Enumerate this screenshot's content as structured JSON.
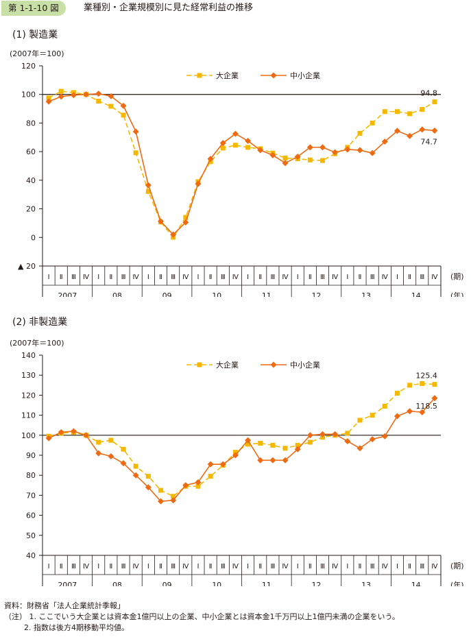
{
  "header": {
    "figure_label": "第 1-1-10 図",
    "title": "業種別・企業規模別に見た経常利益の推移"
  },
  "quarters": [
    "Ⅰ",
    "Ⅱ",
    "Ⅲ",
    "Ⅳ"
  ],
  "years": [
    "2007",
    "08",
    "09",
    "10",
    "11",
    "12",
    "13",
    "14"
  ],
  "period_label": "(期)",
  "year_label": "(年)",
  "chart_data": [
    {
      "type": "line",
      "panel_title": "(1) 製造業",
      "unit": "(2007年＝100)",
      "ylim": [
        -20,
        120
      ],
      "yticks": [
        -20,
        0,
        20,
        40,
        60,
        80,
        100,
        120
      ],
      "ytick_labels": [
        "▲ 20",
        "0",
        "20",
        "40",
        "60",
        "80",
        "100",
        "120"
      ],
      "reference_line": 100,
      "legend_position": "top-center",
      "series": [
        {
          "name": "大企業",
          "color": "#f5b800",
          "style": "dashed",
          "marker": "square",
          "values": [
            97.5,
            102.2,
            101.3,
            100,
            95.3,
            91.7,
            85.5,
            59.2,
            32.1,
            10.8,
            0.1,
            14,
            39,
            53,
            62.5,
            64.5,
            63,
            62,
            59,
            55.5,
            55,
            54.2,
            53.8,
            58.5,
            63,
            72.8,
            80,
            88,
            88,
            86.5,
            89.5,
            94.8
          ],
          "end_label": "94.8"
        },
        {
          "name": "中小企業",
          "color": "#ee6a13",
          "style": "solid",
          "marker": "diamond",
          "values": [
            95,
            98.5,
            99.5,
            100,
            100.5,
            98.8,
            92,
            74,
            36.5,
            11.2,
            2,
            10.5,
            37.5,
            55,
            66,
            72.5,
            67.5,
            61,
            57.5,
            52,
            56.5,
            63,
            63,
            59.5,
            61.5,
            61,
            59,
            67,
            74.5,
            71,
            75.5,
            74.7
          ],
          "end_label": "74.7"
        }
      ]
    },
    {
      "type": "line",
      "panel_title": "(2) 非製造業",
      "unit": "(2007年＝100)",
      "ylim": [
        40,
        140
      ],
      "yticks": [
        40,
        50,
        60,
        70,
        80,
        90,
        100,
        110,
        120,
        130,
        140
      ],
      "ytick_labels": [
        "40",
        "50",
        "60",
        "70",
        "80",
        "90",
        "100",
        "110",
        "120",
        "130",
        "140"
      ],
      "reference_line": 100,
      "legend_position": "top-center",
      "series": [
        {
          "name": "大企業",
          "color": "#f5b800",
          "style": "dashed",
          "marker": "square",
          "values": [
            99.5,
            101,
            101.5,
            100,
            96.5,
            97.5,
            93,
            84.5,
            79.5,
            72.5,
            69.5,
            74.5,
            74.5,
            79.5,
            85,
            91.5,
            95.5,
            96,
            95,
            93.5,
            95,
            96.5,
            99,
            100,
            101,
            107.5,
            110,
            114.5,
            121,
            125,
            125.8,
            125.4
          ],
          "end_label": "125.4"
        },
        {
          "name": "中小企業",
          "color": "#ee6a13",
          "style": "solid",
          "marker": "diamond",
          "values": [
            98.5,
            101.5,
            102,
            100,
            91,
            89.5,
            86,
            80,
            74,
            67,
            67.5,
            75,
            76.5,
            85.5,
            85.5,
            90,
            97.5,
            87.5,
            87.5,
            87.5,
            93,
            100,
            100.5,
            100.5,
            97,
            93.5,
            98,
            99.5,
            109.5,
            112,
            111.5,
            118.5
          ],
          "end_label": "118.5"
        }
      ]
    }
  ],
  "notes": {
    "source": "資料：財務省「法人企業統計季報」",
    "note1": "（注） 1. ここでいう大企業とは資本金1億円以上の企業、中小企業とは資本金1千万円以上1億円未満の企業をいう。",
    "note2": "2. 指数は後方4期移動平均値。"
  }
}
